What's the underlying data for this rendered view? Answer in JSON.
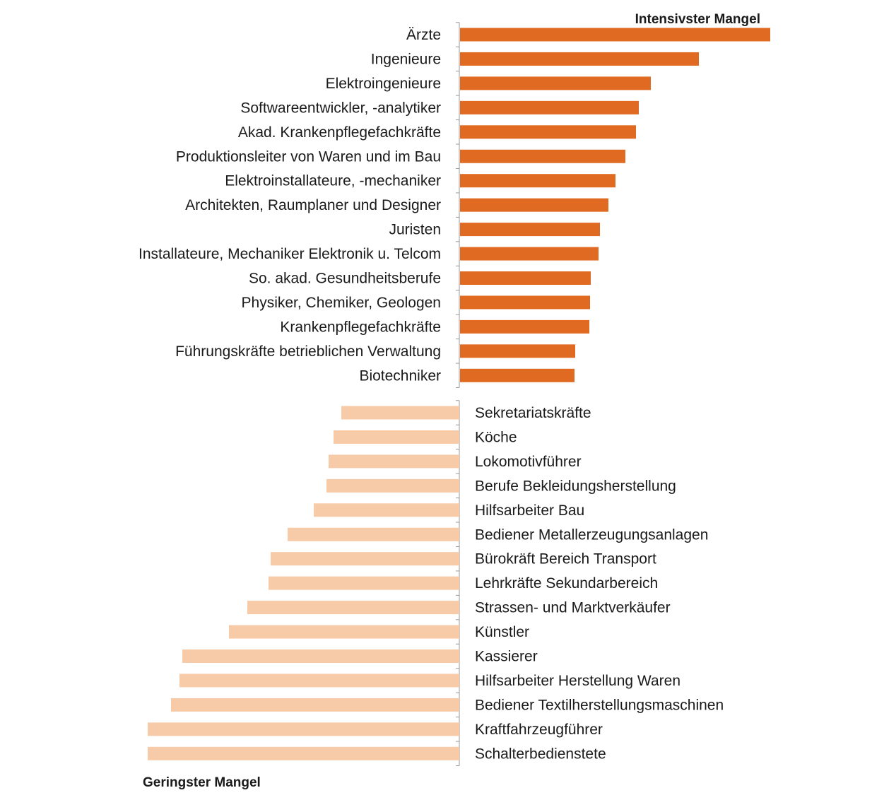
{
  "chart_data": [
    {
      "type": "bar",
      "orientation": "horizontal",
      "title": "Intensivster Mangel",
      "color": "#E06A22",
      "value_unit": "relative (no axis scale shown)",
      "categories": [
        "Ärzte",
        "Ingenieure",
        "Elektroingenieure",
        "Softwareentwickler, -analytiker",
        "Akad. Krankenpflegefachkräfte",
        "Produktionsleiter von Waren und im Bau",
        "Elektroinstallateure, -mechaniker",
        "Architekten, Raumplaner und Designer",
        "Juristen",
        "Installateure, Mechaniker Elektronik u. Telcom",
        "So. akad. Gesundheitsberufe",
        "Physiker, Chemiker, Geologen",
        "Krankenpflegefachkräfte",
        "Führungskräfte betrieblichen Verwaltung",
        "Biotechniker"
      ],
      "values": [
        439,
        338,
        270,
        253,
        249,
        234,
        220,
        210,
        198,
        196,
        185,
        184,
        183,
        163,
        162
      ]
    },
    {
      "type": "bar",
      "orientation": "horizontal",
      "title": "Geringster Mangel",
      "color": "#F8CBA8",
      "value_unit": "relative (no axis scale shown)",
      "categories": [
        "Sekretariatskräfte",
        "Köche",
        "Lokomotivführer",
        "Berufe Bekleidungsherstellung",
        "Hilfsarbeiter Bau",
        "Bediener Metallerzeugungsanlagen",
        "Bürokräft Bereich Transport",
        "Lehrkräfte Sekundarbereich",
        "Strassen- und Marktverkäufer",
        "Künstler",
        "Kassierer",
        "Hilfsarbeiter Herstellung Waren",
        "Bediener Textilherstellungsmaschinen",
        "Kraftfahrzeugführer",
        "Schalterbedienstete"
      ],
      "values": [
        -167,
        -178,
        -185,
        -188,
        -206,
        -243,
        -267,
        -270,
        -300,
        -326,
        -392,
        -396,
        -408,
        -441,
        -441
      ]
    }
  ]
}
